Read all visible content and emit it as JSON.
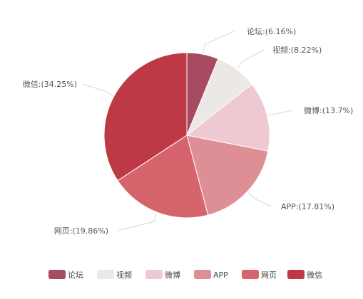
{
  "chart_data": {
    "type": "pie",
    "slices": [
      {
        "label": "论坛",
        "value": 6.16,
        "display": "论坛:(6.16%)",
        "color": "#a84b60"
      },
      {
        "label": "视频",
        "value": 8.22,
        "display": "视频:(8.22%)",
        "color": "#ece8e6"
      },
      {
        "label": "微博",
        "value": 13.7,
        "display": "微博:(13.7%)",
        "color": "#efc9d2"
      },
      {
        "label": "APP",
        "value": 17.81,
        "display": "APP:(17.81%)",
        "color": "#de8f96"
      },
      {
        "label": "网页",
        "value": 19.86,
        "display": "网页:(19.86%)",
        "color": "#d5646d"
      },
      {
        "label": "微信",
        "value": 34.25,
        "display": "微信:(34.25%)",
        "color": "#bd3946"
      }
    ],
    "legend_position": "bottom",
    "start_angle": "12-o'clock",
    "direction": "clockwise"
  }
}
